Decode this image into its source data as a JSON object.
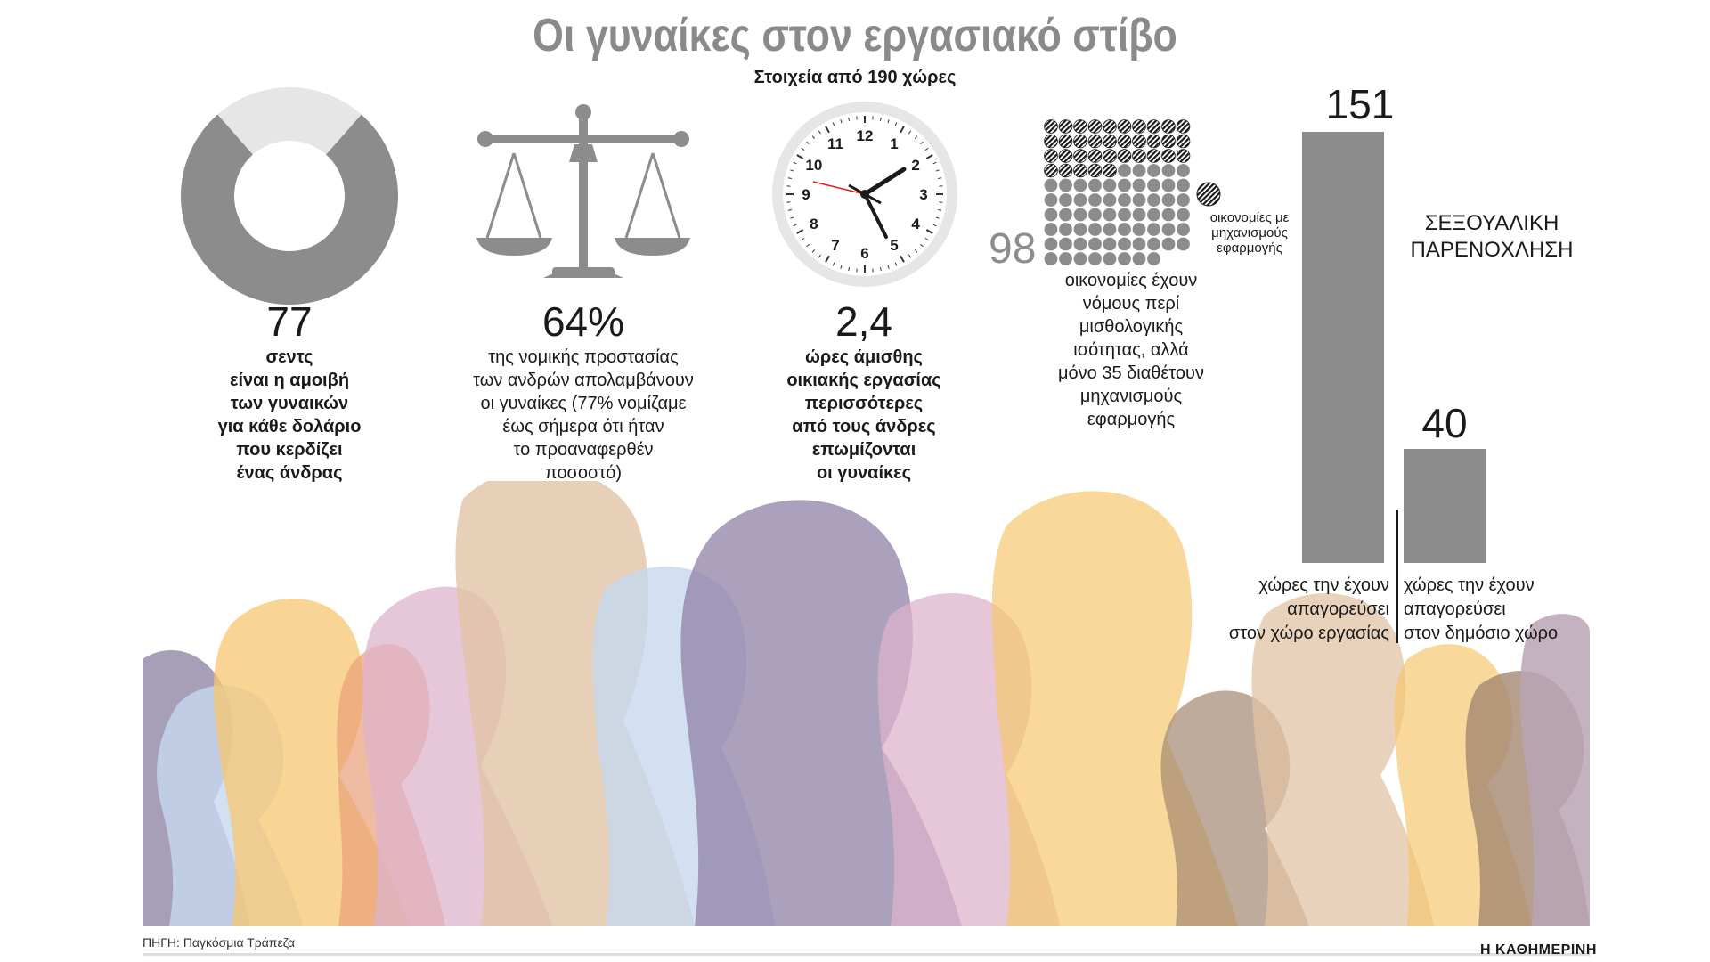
{
  "title": "Οι γυναίκες στον εργασιακό στίβο",
  "subtitle": "Στοιχεία από 190 χώρες",
  "stat1": {
    "value": "77",
    "fraction": 0.77,
    "caption_lines": [
      "σεντς",
      "είναι η αμοιβή",
      "των γυναικών",
      "για κάθε δολάριο",
      "που κερδίζει",
      "ένας άνδρας"
    ],
    "colors": {
      "filled": "#8c8c8c",
      "empty": "#e6e6e6"
    }
  },
  "stat2": {
    "value": "64%",
    "caption_lines": [
      "της νομικής προστασίας",
      "των ανδρών απολαμβάνουν",
      "οι γυναίκες (77% νομίζαμε",
      "έως σήμερα ότι ήταν",
      "το προαναφερθέν",
      "ποσοστό)"
    ]
  },
  "stat3": {
    "value": "2,4",
    "caption_lines": [
      "ώρες άμισθης",
      "οικιακής εργασίας",
      "περισσότερες",
      "από τους άνδρες",
      "επωμίζονται",
      "οι γυναίκες"
    ],
    "clock_numbers": [
      "12",
      "1",
      "2",
      "3",
      "4",
      "5",
      "6",
      "7",
      "8",
      "9",
      "10",
      "11"
    ]
  },
  "stat4": {
    "value": "98",
    "total_dots": 98,
    "enforced_dots": 35,
    "legend": [
      "οικονομίες με",
      "μηχανισμούς",
      "εφαρμογής"
    ],
    "caption_lines": [
      "οικονομίες έχουν",
      "νόμους περί",
      "μισθολογικής",
      "ισότητας, αλλά",
      "μόνο 35 διαθέτουν",
      "μηχανισμούς",
      "εφαρμογής"
    ]
  },
  "harassment": {
    "heading_lines": [
      "ΣΕΞΟΥΑΛΙΚΗ",
      "ΠΑΡΕΝΟΧΛΗΣΗ"
    ],
    "bars": [
      {
        "value": 151,
        "label": "151",
        "caption_lines": [
          "χώρες την έχουν",
          "απαγορεύσει",
          "στον χώρο εργασίας"
        ]
      },
      {
        "value": 40,
        "label": "40",
        "caption_lines": [
          "χώρες την έχουν",
          "απαγορεύσει",
          "στον δημόσιο χώρο"
        ]
      }
    ],
    "bar_color": "#8c8c8c"
  },
  "silhouette_colors": [
    "#9d8aa3",
    "#f6c770",
    "#e2c3a5",
    "#c7d8ef",
    "#ddb3cc",
    "#e99f79",
    "#8f82a5",
    "#a48770",
    "#bba5b5"
  ],
  "source": "ΠΗΓΗ: Παγκόσμια Τράπεζα",
  "brand": "Η ΚΑΘΗΜΕΡΙΝΗ"
}
